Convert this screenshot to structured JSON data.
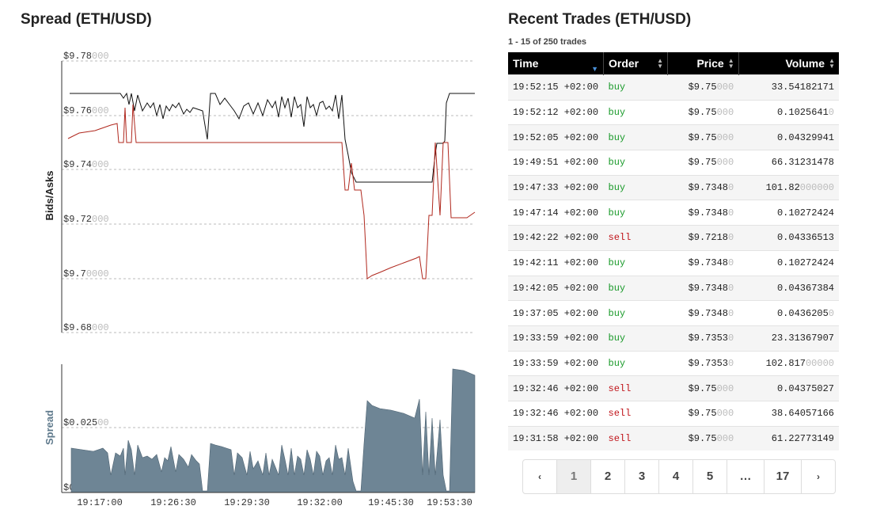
{
  "spread_panel": {
    "title": "Spread (ETH/USD)",
    "ylabel_top": "Bids/Asks",
    "ylabel_bottom": "Spread",
    "y_ticks_top": [
      {
        "strong": "$9.78",
        "faded": "000"
      },
      {
        "strong": "$9.76",
        "faded": "000"
      },
      {
        "strong": "$9.74",
        "faded": "000"
      },
      {
        "strong": "$9.72",
        "faded": "000"
      },
      {
        "strong": "$9.7",
        "faded": "0000"
      },
      {
        "strong": "$9.68",
        "faded": "000"
      }
    ],
    "y_ticks_bottom": [
      {
        "strong": "$0.025",
        "faded": "00"
      },
      {
        "strong": "$0.",
        "faded": "00000"
      }
    ],
    "x_ticks": [
      "19:17:00",
      "19:26:30",
      "19:29:30",
      "19:32:00",
      "19:45:30",
      "19:53:30"
    ]
  },
  "chart_data": [
    {
      "type": "line",
      "ylabel": "Bids/Asks",
      "ylim": [
        9.68,
        9.78
      ],
      "x": [
        "19:17:00",
        "19:26:30",
        "19:29:30",
        "19:32:00",
        "19:45:30",
        "19:53:30"
      ],
      "series": [
        {
          "values": [
            9.769,
            9.761,
            9.765,
            9.75,
            9.734,
            9.768
          ]
        },
        {
          "values": [
            9.751,
            9.75,
            9.75,
            9.75,
            9.703,
            9.723
          ]
        }
      ],
      "grid": true
    },
    {
      "type": "area",
      "ylabel": "Spread",
      "ylim": [
        0,
        0.045
      ],
      "x": [
        "19:17:00",
        "19:26:30",
        "19:29:30",
        "19:32:00",
        "19:45:30",
        "19:53:30"
      ],
      "series": [
        {
          "values": [
            0.013,
            0.011,
            0.012,
            0.011,
            0.03,
            0.043
          ]
        }
      ],
      "grid": true
    }
  ],
  "trades": {
    "title": "Recent Trades (ETH/USD)",
    "count_text": "1 - 15 of 250 trades",
    "columns": [
      "Time",
      "Order",
      "Price",
      "Volume"
    ],
    "rows": [
      {
        "time": "19:52:15 +02:00",
        "order": "buy",
        "price": "$9.75",
        "price_faded": "000",
        "volume": "33.54182171",
        "volume_faded": ""
      },
      {
        "time": "19:52:12 +02:00",
        "order": "buy",
        "price": "$9.75",
        "price_faded": "000",
        "volume": "0.1025641",
        "volume_faded": "0"
      },
      {
        "time": "19:52:05 +02:00",
        "order": "buy",
        "price": "$9.75",
        "price_faded": "000",
        "volume": "0.04329941",
        "volume_faded": ""
      },
      {
        "time": "19:49:51 +02:00",
        "order": "buy",
        "price": "$9.75",
        "price_faded": "000",
        "volume": "66.31231478",
        "volume_faded": ""
      },
      {
        "time": "19:47:33 +02:00",
        "order": "buy",
        "price": "$9.7348",
        "price_faded": "0",
        "volume": "101.82",
        "volume_faded": "000000"
      },
      {
        "time": "19:47:14 +02:00",
        "order": "buy",
        "price": "$9.7348",
        "price_faded": "0",
        "volume": "0.10272424",
        "volume_faded": ""
      },
      {
        "time": "19:42:22 +02:00",
        "order": "sell",
        "price": "$9.7218",
        "price_faded": "0",
        "volume": "0.04336513",
        "volume_faded": ""
      },
      {
        "time": "19:42:11 +02:00",
        "order": "buy",
        "price": "$9.7348",
        "price_faded": "0",
        "volume": "0.10272424",
        "volume_faded": ""
      },
      {
        "time": "19:42:05 +02:00",
        "order": "buy",
        "price": "$9.7348",
        "price_faded": "0",
        "volume": "0.04367384",
        "volume_faded": ""
      },
      {
        "time": "19:37:05 +02:00",
        "order": "buy",
        "price": "$9.7348",
        "price_faded": "0",
        "volume": "0.0436205",
        "volume_faded": "0"
      },
      {
        "time": "19:33:59 +02:00",
        "order": "buy",
        "price": "$9.7353",
        "price_faded": "0",
        "volume": "23.31367907",
        "volume_faded": ""
      },
      {
        "time": "19:33:59 +02:00",
        "order": "buy",
        "price": "$9.7353",
        "price_faded": "0",
        "volume": "102.817",
        "volume_faded": "00000"
      },
      {
        "time": "19:32:46 +02:00",
        "order": "sell",
        "price": "$9.75",
        "price_faded": "000",
        "volume": "0.04375027",
        "volume_faded": ""
      },
      {
        "time": "19:32:46 +02:00",
        "order": "sell",
        "price": "$9.75",
        "price_faded": "000",
        "volume": "38.64057166",
        "volume_faded": ""
      },
      {
        "time": "19:31:58 +02:00",
        "order": "sell",
        "price": "$9.75",
        "price_faded": "000",
        "volume": "61.22773149",
        "volume_faded": ""
      }
    ]
  },
  "pagination": {
    "prev": "‹",
    "pages": [
      "1",
      "2",
      "3",
      "4",
      "5",
      "…",
      "17"
    ],
    "next": "›",
    "current": "1"
  },
  "colors": {
    "ask_line": "#111111",
    "bid_line": "#b0281e",
    "spread_fill": "#6e8595",
    "spread_label": "#5f7a8c",
    "buy": "#1a9a2a",
    "sell": "#c0141a",
    "header_bg": "#000000"
  },
  "icons": {
    "sort": "sort-updown-icon",
    "sort_active": "sort-down-icon",
    "prev": "chevron-left-icon",
    "next": "chevron-right-icon"
  }
}
